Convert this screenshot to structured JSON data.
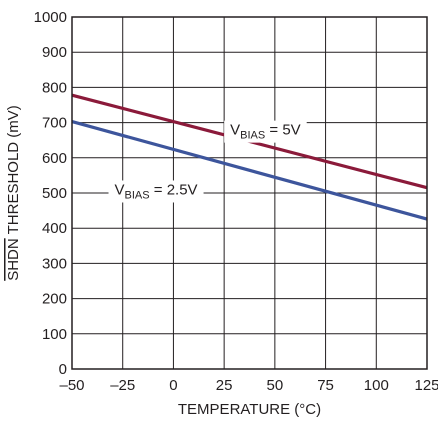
{
  "chart_data": {
    "type": "line",
    "title": "",
    "xlabel": "TEMPERATURE (°C)",
    "ylabel_over": "SHDN",
    "ylabel_rest": " THRESHOLD (mV)",
    "xlim": [
      -50,
      125
    ],
    "ylim": [
      0,
      1000
    ],
    "xticks": [
      -50,
      -25,
      0,
      25,
      50,
      75,
      100,
      125
    ],
    "xtick_labels": [
      "–50",
      "–25",
      "0",
      "25",
      "50",
      "75",
      "100",
      "125"
    ],
    "yticks": [
      0,
      100,
      200,
      300,
      400,
      500,
      600,
      700,
      800,
      900,
      1000
    ],
    "ytick_labels": [
      "0",
      "100",
      "200",
      "300",
      "400",
      "500",
      "600",
      "700",
      "800",
      "900",
      "1000"
    ],
    "grid": true,
    "series": [
      {
        "label_main": "V",
        "label_sub": "BIAS",
        "label_rest": " = 5V",
        "color": "#8b1a3a",
        "x": [
          -50,
          125
        ],
        "y": [
          778,
          515
        ]
      },
      {
        "label_main": "V",
        "label_sub": "BIAS",
        "label_rest": " = 2.5V",
        "color": "#3d559c",
        "x": [
          -50,
          125
        ],
        "y": [
          703,
          426
        ]
      }
    ]
  }
}
